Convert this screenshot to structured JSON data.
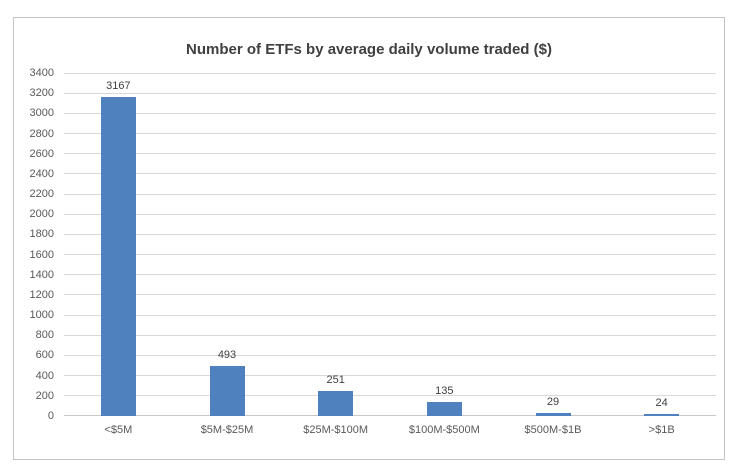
{
  "chart_data": {
    "type": "bar",
    "title": "Number of ETFs by average daily volume traded ($)",
    "categories": [
      "<$5M",
      "$5M-$25M",
      "$25M-$100M",
      "$100M-$500M",
      "$500M-$1B",
      ">$1B"
    ],
    "values": [
      3167,
      493,
      251,
      135,
      29,
      24
    ],
    "data_labels": [
      "3167",
      "493",
      "251",
      "135",
      "29",
      "24"
    ],
    "xlabel": "",
    "ylabel": "",
    "ylim": [
      0,
      3400
    ],
    "ytick_step": 200,
    "grid": true,
    "legend": "none"
  },
  "colors": {
    "bar": "#4e81bd",
    "gridline": "#d9d9d9",
    "axis_line": "#c8c8c8",
    "title_text": "#404040",
    "tick_label": "#595959",
    "data_label": "#404040",
    "frame_border": "#c3c3c3",
    "background": "#ffffff"
  }
}
